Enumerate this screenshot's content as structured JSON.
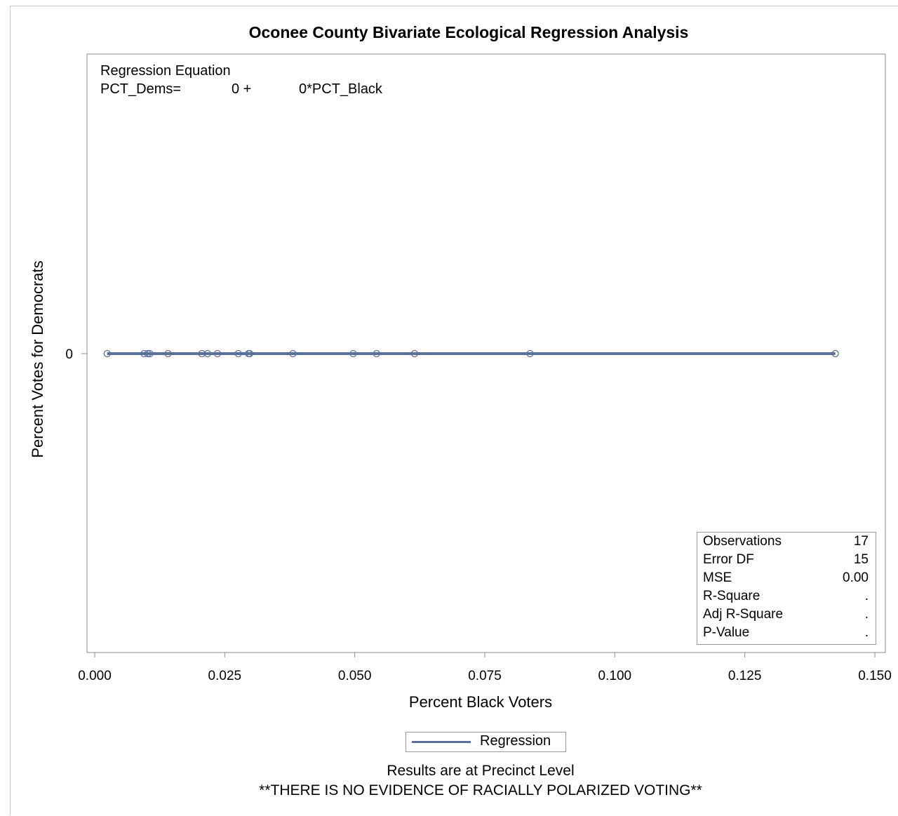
{
  "chart_data": {
    "type": "scatter",
    "title": "Oconee County Bivariate Ecological Regression Analysis",
    "xlabel": "Percent Black Voters",
    "ylabel": "Percent Votes for Democrats",
    "xlim": [
      0.0,
      0.15
    ],
    "xticks": [
      "0.000",
      "0.025",
      "0.050",
      "0.075",
      "0.100",
      "0.125",
      "0.150"
    ],
    "yticks": [
      "0"
    ],
    "grid": false,
    "points": [
      {
        "x": 0.0024,
        "y": 0
      },
      {
        "x": 0.0095,
        "y": 0
      },
      {
        "x": 0.0102,
        "y": 0
      },
      {
        "x": 0.0106,
        "y": 0
      },
      {
        "x": 0.0141,
        "y": 0
      },
      {
        "x": 0.0206,
        "y": 0
      },
      {
        "x": 0.0217,
        "y": 0
      },
      {
        "x": 0.0236,
        "y": 0
      },
      {
        "x": 0.0276,
        "y": 0
      },
      {
        "x": 0.0296,
        "y": 0
      },
      {
        "x": 0.0298,
        "y": 0
      },
      {
        "x": 0.0381,
        "y": 0
      },
      {
        "x": 0.0497,
        "y": 0
      },
      {
        "x": 0.0542,
        "y": 0
      },
      {
        "x": 0.0615,
        "y": 0
      },
      {
        "x": 0.0837,
        "y": 0
      },
      {
        "x": 0.1424,
        "y": 0
      }
    ],
    "regression_line": {
      "x": [
        0.0024,
        0.1424
      ],
      "y": [
        0,
        0
      ]
    },
    "legend": {
      "entries": [
        "Regression"
      ],
      "placement": "bottom"
    },
    "equation": {
      "heading": "Regression Equation",
      "lhs": "PCT_Dems=",
      "intercept": "0 +",
      "slope_term": "0*PCT_Black"
    },
    "stats": [
      {
        "label": "Observations",
        "value": "17"
      },
      {
        "label": "Error DF",
        "value": "15"
      },
      {
        "label": "MSE",
        "value": "0.00"
      },
      {
        "label": "R-Square",
        "value": "."
      },
      {
        "label": "Adj R-Square",
        "value": "."
      },
      {
        "label": "P-Value",
        "value": "."
      }
    ],
    "footnotes": [
      "Results are at Precinct Level",
      "**THERE IS NO EVIDENCE OF RACIALLY POLARIZED VOTING**"
    ],
    "colors": {
      "series": "#5b6f9a",
      "axis": "#8c8c8c"
    }
  }
}
